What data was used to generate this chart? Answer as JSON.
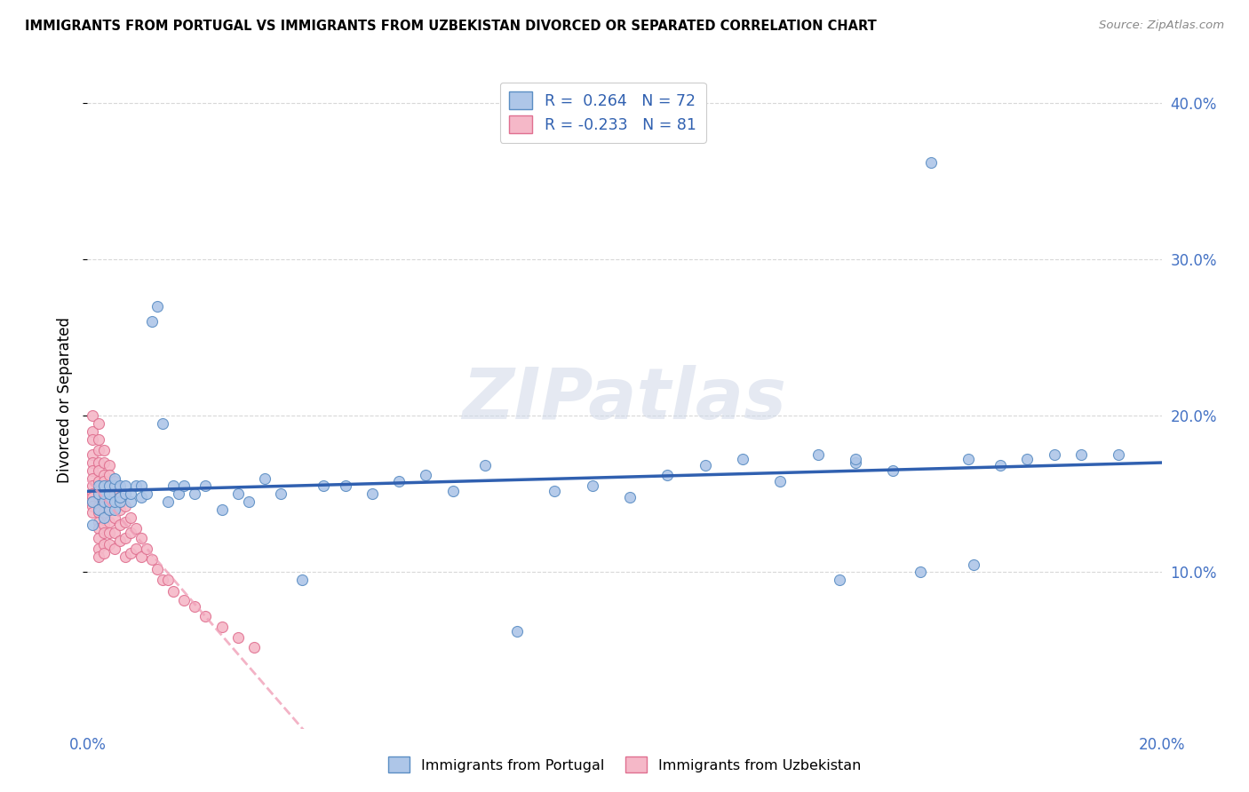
{
  "title": "IMMIGRANTS FROM PORTUGAL VS IMMIGRANTS FROM UZBEKISTAN DIVORCED OR SEPARATED CORRELATION CHART",
  "source": "Source: ZipAtlas.com",
  "ylabel": "Divorced or Separated",
  "xlim": [
    0.0,
    0.2
  ],
  "ylim": [
    0.0,
    0.42
  ],
  "portugal_color": "#aec6e8",
  "portugal_edge": "#5b8ec4",
  "uzbekistan_color": "#f5b8c8",
  "uzbekistan_edge": "#e07090",
  "portugal_R": 0.264,
  "portugal_N": 72,
  "uzbekistan_R": -0.233,
  "uzbekistan_N": 81,
  "portugal_line_color": "#3060b0",
  "uzbekistan_line_color": "#f0a0b8",
  "background_color": "#ffffff",
  "grid_color": "#d8d8d8",
  "portugal_x": [
    0.001,
    0.001,
    0.002,
    0.002,
    0.002,
    0.003,
    0.003,
    0.003,
    0.003,
    0.004,
    0.004,
    0.004,
    0.004,
    0.005,
    0.005,
    0.005,
    0.005,
    0.006,
    0.006,
    0.006,
    0.007,
    0.007,
    0.008,
    0.008,
    0.009,
    0.01,
    0.01,
    0.011,
    0.012,
    0.013,
    0.014,
    0.015,
    0.016,
    0.017,
    0.018,
    0.02,
    0.022,
    0.025,
    0.028,
    0.03,
    0.033,
    0.036,
    0.04,
    0.044,
    0.048,
    0.053,
    0.058,
    0.063,
    0.068,
    0.074,
    0.08,
    0.087,
    0.094,
    0.101,
    0.108,
    0.115,
    0.122,
    0.129,
    0.136,
    0.143,
    0.15,
    0.157,
    0.164,
    0.17,
    0.175,
    0.18,
    0.185,
    0.165,
    0.155,
    0.143,
    0.14,
    0.192
  ],
  "portugal_y": [
    0.13,
    0.145,
    0.14,
    0.15,
    0.155,
    0.135,
    0.145,
    0.15,
    0.155,
    0.14,
    0.145,
    0.15,
    0.155,
    0.14,
    0.145,
    0.155,
    0.16,
    0.145,
    0.155,
    0.148,
    0.15,
    0.155,
    0.145,
    0.15,
    0.155,
    0.148,
    0.155,
    0.15,
    0.26,
    0.27,
    0.195,
    0.145,
    0.155,
    0.15,
    0.155,
    0.15,
    0.155,
    0.14,
    0.15,
    0.145,
    0.16,
    0.15,
    0.095,
    0.155,
    0.155,
    0.15,
    0.158,
    0.162,
    0.152,
    0.168,
    0.062,
    0.152,
    0.155,
    0.148,
    0.162,
    0.168,
    0.172,
    0.158,
    0.175,
    0.17,
    0.165,
    0.362,
    0.172,
    0.168,
    0.172,
    0.175,
    0.175,
    0.105,
    0.1,
    0.172,
    0.095,
    0.175
  ],
  "uzbekistan_x": [
    0.001,
    0.001,
    0.001,
    0.001,
    0.001,
    0.001,
    0.001,
    0.001,
    0.001,
    0.001,
    0.001,
    0.001,
    0.001,
    0.002,
    0.002,
    0.002,
    0.002,
    0.002,
    0.002,
    0.002,
    0.002,
    0.002,
    0.002,
    0.002,
    0.002,
    0.002,
    0.002,
    0.002,
    0.003,
    0.003,
    0.003,
    0.003,
    0.003,
    0.003,
    0.003,
    0.003,
    0.003,
    0.003,
    0.003,
    0.003,
    0.004,
    0.004,
    0.004,
    0.004,
    0.004,
    0.004,
    0.004,
    0.004,
    0.005,
    0.005,
    0.005,
    0.005,
    0.005,
    0.005,
    0.006,
    0.006,
    0.006,
    0.006,
    0.007,
    0.007,
    0.007,
    0.007,
    0.008,
    0.008,
    0.008,
    0.009,
    0.009,
    0.01,
    0.01,
    0.011,
    0.012,
    0.013,
    0.014,
    0.015,
    0.016,
    0.018,
    0.02,
    0.022,
    0.025,
    0.028,
    0.031
  ],
  "uzbekistan_y": [
    0.2,
    0.19,
    0.185,
    0.175,
    0.17,
    0.165,
    0.16,
    0.155,
    0.15,
    0.148,
    0.145,
    0.142,
    0.138,
    0.195,
    0.185,
    0.178,
    0.17,
    0.165,
    0.158,
    0.152,
    0.148,
    0.142,
    0.138,
    0.132,
    0.128,
    0.122,
    0.115,
    0.11,
    0.178,
    0.17,
    0.162,
    0.158,
    0.152,
    0.148,
    0.142,
    0.138,
    0.13,
    0.125,
    0.118,
    0.112,
    0.168,
    0.162,
    0.155,
    0.148,
    0.14,
    0.132,
    0.125,
    0.118,
    0.158,
    0.15,
    0.142,
    0.135,
    0.125,
    0.115,
    0.148,
    0.14,
    0.13,
    0.12,
    0.142,
    0.132,
    0.122,
    0.11,
    0.135,
    0.125,
    0.112,
    0.128,
    0.115,
    0.122,
    0.11,
    0.115,
    0.108,
    0.102,
    0.095,
    0.095,
    0.088,
    0.082,
    0.078,
    0.072,
    0.065,
    0.058,
    0.052
  ]
}
